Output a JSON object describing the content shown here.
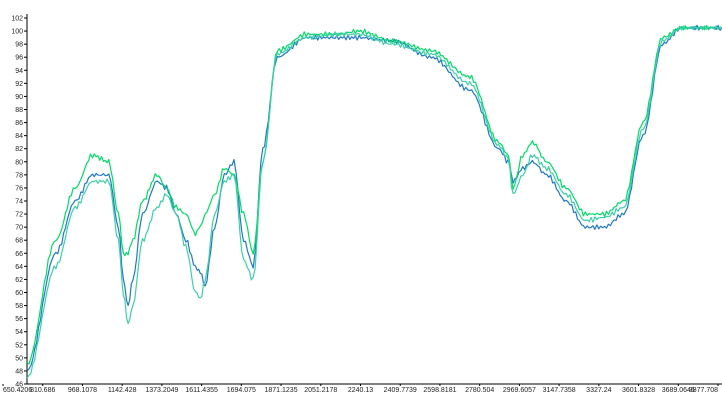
{
  "chart_data": {
    "type": "line",
    "title": "",
    "xlabel": "",
    "ylabel": "",
    "ylim": [
      46,
      102
    ],
    "y_ticks": [
      46,
      48,
      50,
      52,
      54,
      56,
      58,
      60,
      62,
      64,
      66,
      68,
      70,
      72,
      74,
      76,
      78,
      80,
      82,
      84,
      86,
      88,
      90,
      92,
      94,
      96,
      98,
      100,
      102
    ],
    "x_tick_labels": [
      "650.4206",
      "810.686",
      "968.1078",
      "1142.428",
      "1373.2049",
      "1611.4355",
      "1694.075",
      "1871.1235",
      "2051.2178",
      "2240.13",
      "2409.7739",
      "2598.8181",
      "2780.504",
      "2969.6057",
      "3147.7358",
      "3327.24",
      "3601.8328",
      "3689.0646",
      "3877.708"
    ],
    "x": [
      0,
      30,
      50,
      68,
      85,
      95,
      100,
      105,
      110,
      120,
      135,
      145,
      155,
      165,
      175,
      180,
      185,
      195,
      205,
      215,
      225,
      235,
      245,
      260,
      290,
      320,
      345,
      380,
      420,
      460,
      490,
      500,
      505,
      515,
      525,
      540,
      560,
      580,
      600,
      620,
      640,
      660,
      680,
      722
    ],
    "series": [
      {
        "color": "#1f78c8",
        "values": [
          48,
          66,
          74,
          78,
          78,
          70,
          62,
          58,
          62,
          72,
          77,
          76,
          72,
          68,
          64,
          63,
          61,
          70,
          78,
          80,
          68,
          64,
          82,
          96,
          99,
          99,
          99,
          98.5,
          96,
          91,
          82,
          80,
          77,
          79,
          80,
          78,
          74,
          70,
          70,
          72,
          84,
          98,
          100.5,
          100.5
        ]
      },
      {
        "color": "#00dc64",
        "values": [
          49,
          68,
          76,
          81,
          80,
          72,
          66,
          66,
          68,
          74,
          78,
          76,
          73,
          72,
          69,
          70,
          72,
          75,
          79,
          78,
          72,
          66,
          80,
          97,
          99.5,
          99.5,
          100,
          98.5,
          97,
          93,
          83,
          81,
          76,
          81,
          83,
          80,
          76,
          72,
          72,
          74,
          86,
          99,
          100.5,
          100.5
        ]
      },
      {
        "color": "#3ccfa8",
        "values": [
          47,
          64,
          73,
          77,
          77,
          68,
          60,
          55,
          58,
          68,
          73,
          75,
          72,
          67,
          60,
          59,
          62,
          72,
          77,
          78,
          65,
          62,
          80,
          96.5,
          99,
          99.5,
          99.5,
          98,
          96.5,
          92,
          82.5,
          80.5,
          75,
          78,
          81,
          79,
          75,
          71,
          71.5,
          73,
          85,
          98.5,
          100.5,
          100.5
        ]
      }
    ]
  }
}
